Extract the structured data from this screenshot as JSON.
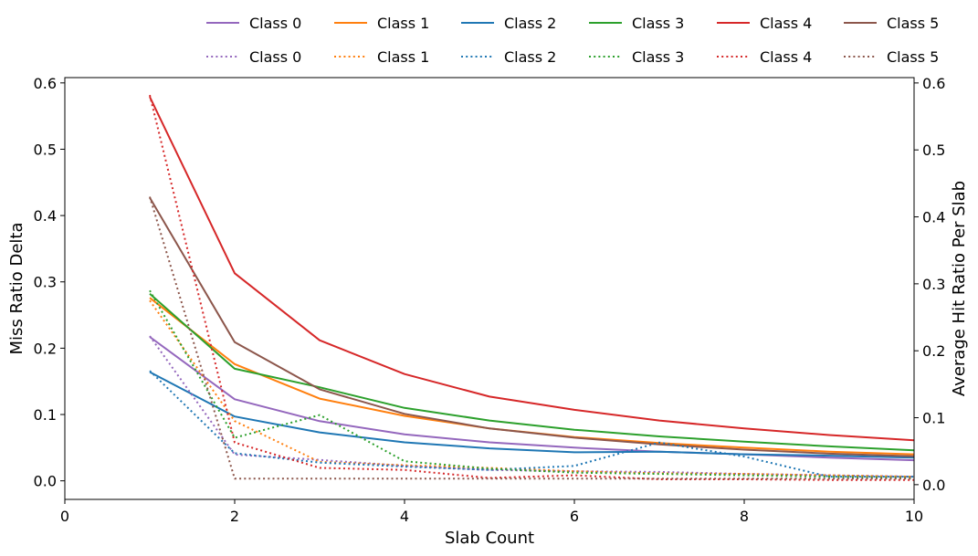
{
  "chart_data": {
    "type": "line",
    "title": "",
    "xlabel": "Slab Count",
    "ylabel": "Miss Ratio Delta",
    "ylabel_right": "Average Hit Ratio Per Slab",
    "xlim": [
      0,
      10
    ],
    "ylim": [
      -0.028,
      0.608
    ],
    "ylim_right": [
      -0.022,
      0.608
    ],
    "xticks": [
      "0",
      "2",
      "4",
      "6",
      "8",
      "10"
    ],
    "yticks": [
      "0.0",
      "0.1",
      "0.2",
      "0.3",
      "0.4",
      "0.5",
      "0.6"
    ],
    "yticks_right": [
      "0.0",
      "0.1",
      "0.2",
      "0.3",
      "0.4",
      "0.5",
      "0.6"
    ],
    "grid": false,
    "legend_position": "top, outside plot",
    "x": [
      1,
      2,
      3,
      4,
      5,
      6,
      7,
      8,
      9,
      10
    ],
    "series": [
      {
        "name": "Class 0",
        "axis": "left",
        "style": "solid",
        "color": "#9467bd",
        "values": [
          0.217,
          0.123,
          0.09,
          0.07,
          0.058,
          0.05,
          0.044,
          0.04,
          0.035,
          0.031
        ]
      },
      {
        "name": "Class 1",
        "axis": "left",
        "style": "solid",
        "color": "#ff7f0e",
        "values": [
          0.276,
          0.176,
          0.124,
          0.098,
          0.079,
          0.066,
          0.057,
          0.05,
          0.044,
          0.04
        ]
      },
      {
        "name": "Class 2",
        "axis": "left",
        "style": "solid",
        "color": "#1f77b4",
        "values": [
          0.164,
          0.097,
          0.073,
          0.058,
          0.049,
          0.043,
          0.044,
          0.04,
          0.038,
          0.035
        ]
      },
      {
        "name": "Class 3",
        "axis": "left",
        "style": "solid",
        "color": "#2ca02c",
        "values": [
          0.282,
          0.169,
          0.141,
          0.11,
          0.091,
          0.077,
          0.067,
          0.059,
          0.052,
          0.046
        ]
      },
      {
        "name": "Class 4",
        "axis": "left",
        "style": "solid",
        "color": "#d62728",
        "values": [
          0.579,
          0.313,
          0.212,
          0.161,
          0.127,
          0.107,
          0.091,
          0.079,
          0.069,
          0.061
        ]
      },
      {
        "name": "Class 5",
        "axis": "left",
        "style": "solid",
        "color": "#8c564b",
        "values": [
          0.427,
          0.209,
          0.138,
          0.101,
          0.079,
          0.065,
          0.055,
          0.047,
          0.041,
          0.037
        ]
      },
      {
        "name": "Class 0",
        "axis": "right",
        "style": "dotted",
        "color": "#9467bd",
        "values": [
          0.222,
          0.045,
          0.037,
          0.028,
          0.022,
          0.02,
          0.019,
          0.016,
          0.014,
          0.012
        ]
      },
      {
        "name": "Class 1",
        "axis": "right",
        "style": "dotted",
        "color": "#ff7f0e",
        "values": [
          0.275,
          0.095,
          0.034,
          0.029,
          0.025,
          0.02,
          0.017,
          0.016,
          0.014,
          0.012
        ]
      },
      {
        "name": "Class 2",
        "axis": "right",
        "style": "dotted",
        "color": "#1f77b4",
        "values": [
          0.17,
          0.047,
          0.033,
          0.027,
          0.022,
          0.028,
          0.063,
          0.042,
          0.012,
          0.012
        ]
      },
      {
        "name": "Class 3",
        "axis": "right",
        "style": "dotted",
        "color": "#2ca02c",
        "values": [
          0.29,
          0.07,
          0.104,
          0.035,
          0.024,
          0.018,
          0.016,
          0.014,
          0.012,
          0.01
        ]
      },
      {
        "name": "Class 4",
        "axis": "right",
        "style": "dotted",
        "color": "#d62728",
        "values": [
          0.582,
          0.063,
          0.025,
          0.022,
          0.01,
          0.014,
          0.008,
          0.008,
          0.007,
          0.007
        ]
      },
      {
        "name": "Class 5",
        "axis": "right",
        "style": "dotted",
        "color": "#8c564b",
        "values": [
          0.43,
          0.009,
          0.009,
          0.009,
          0.009,
          0.009,
          0.009,
          0.009,
          0.009,
          0.009
        ]
      }
    ]
  }
}
